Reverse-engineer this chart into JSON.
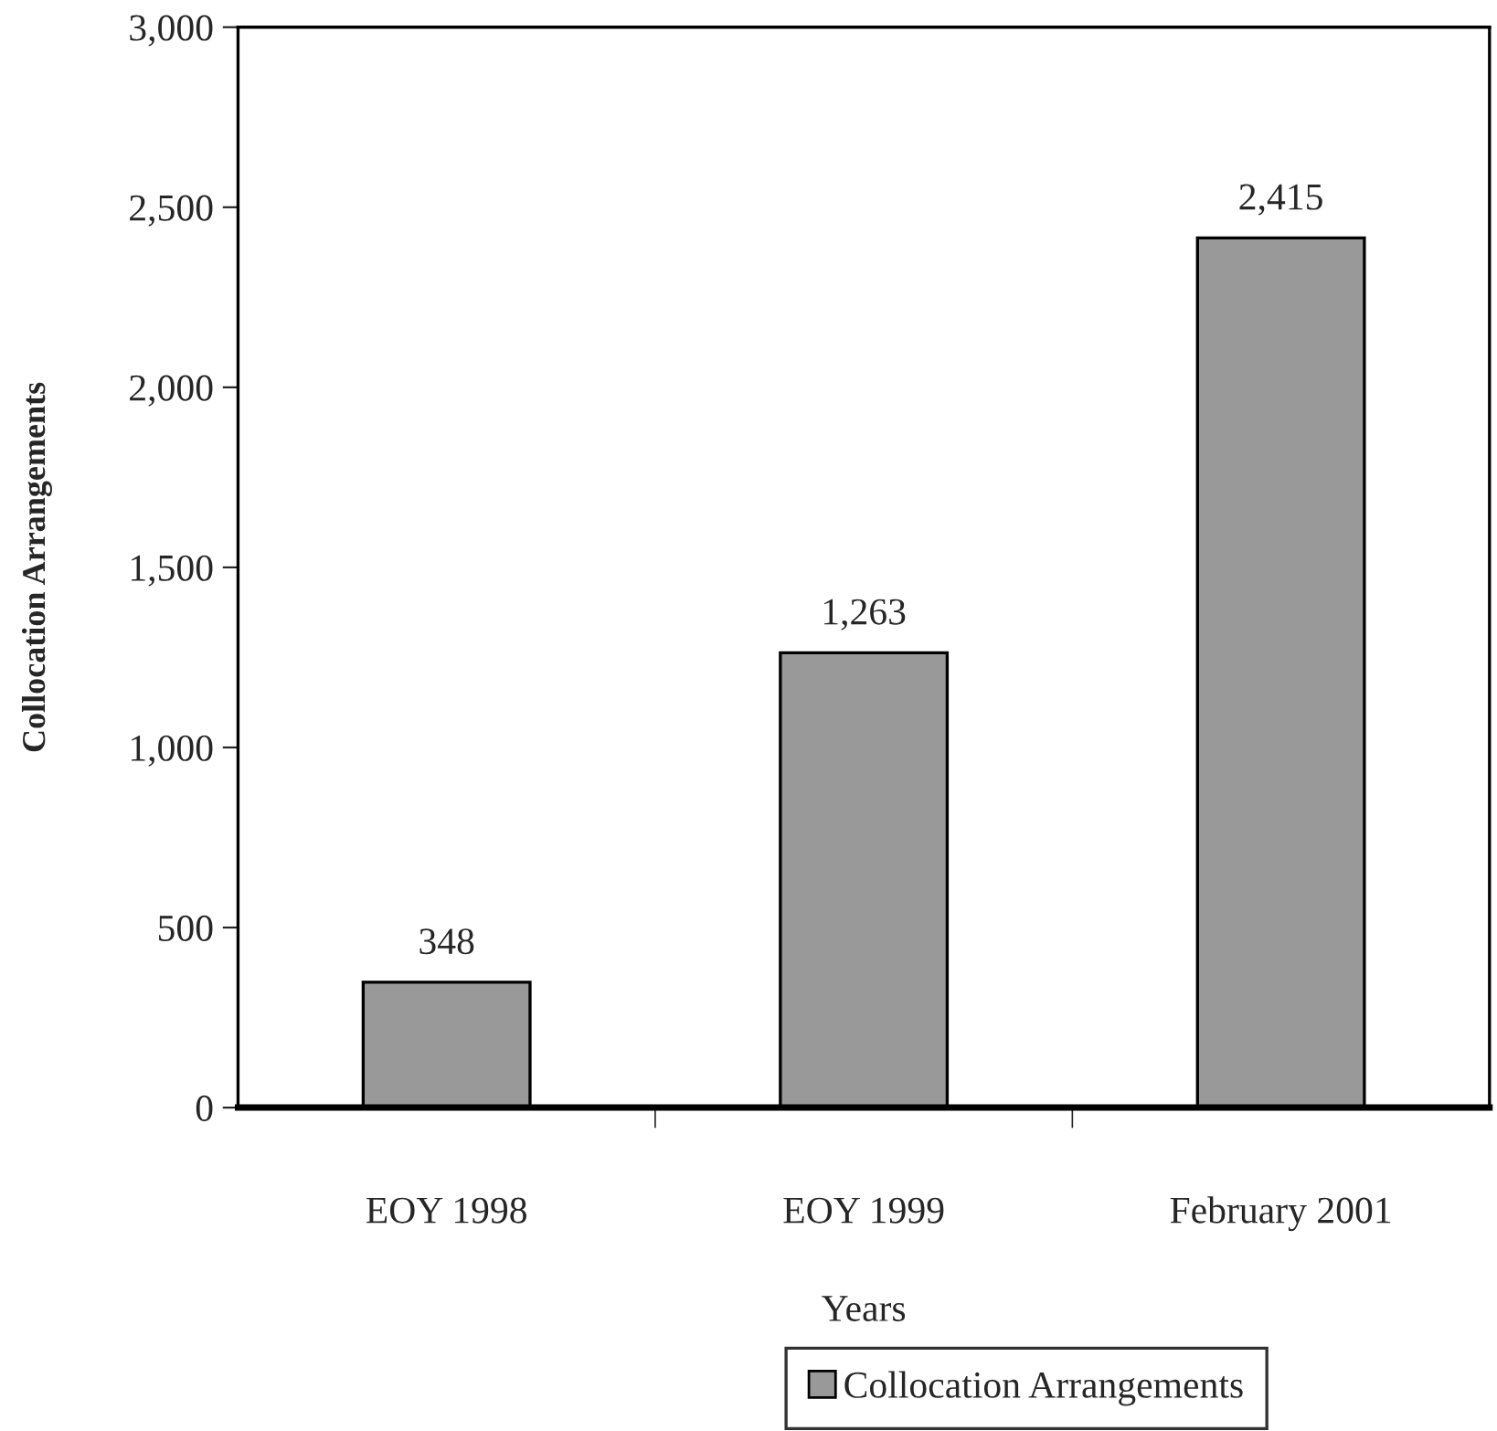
{
  "chart_data": {
    "type": "bar",
    "xlabel": "Years",
    "ylabel": "Collocation Arrangements",
    "categories": [
      "EOY 1998",
      "EOY 1999",
      "February 2001"
    ],
    "series": [
      {
        "name": "Collocation Arrangements",
        "color": "#999999",
        "values": [
          348,
          1263,
          2415
        ]
      }
    ],
    "ylim": [
      0,
      3000
    ],
    "yticks": [
      {
        "value": 0,
        "label": "0"
      },
      {
        "value": 500,
        "label": "500"
      },
      {
        "value": 1000,
        "label": "1,000"
      },
      {
        "value": 1500,
        "label": "1,500"
      },
      {
        "value": 2000,
        "label": "2,000"
      },
      {
        "value": 2500,
        "label": "2,500"
      },
      {
        "value": 3000,
        "label": "3,000"
      }
    ],
    "value_labels": [
      "348",
      "1,263",
      "2,415"
    ],
    "grid": false,
    "legend": "bottom"
  }
}
